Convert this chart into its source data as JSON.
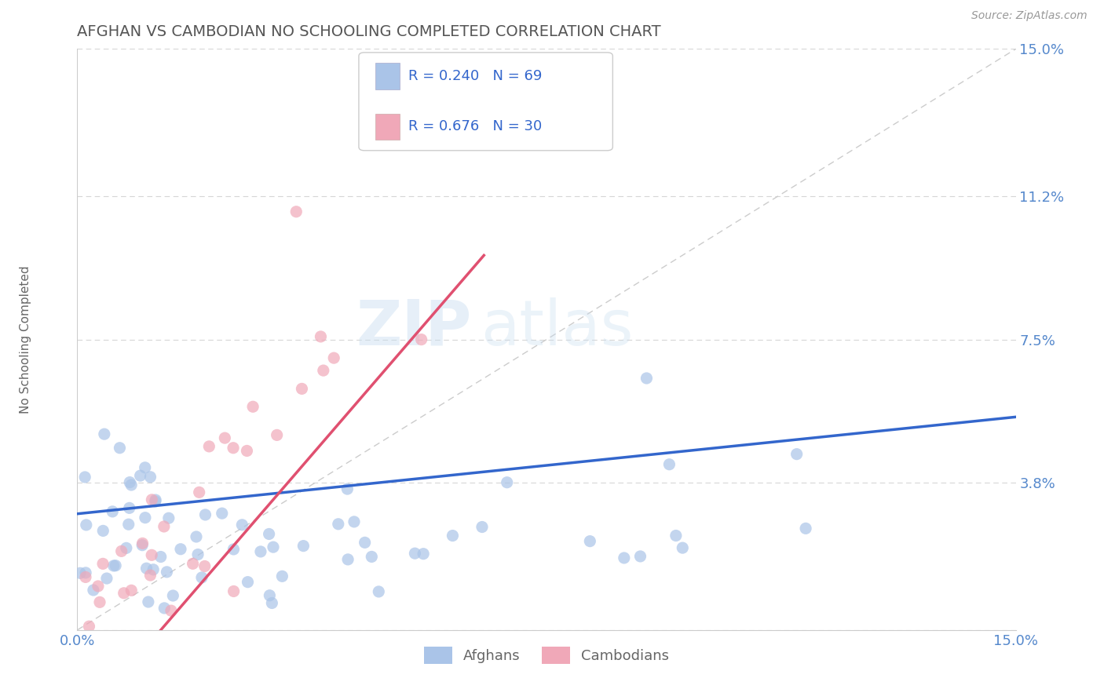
{
  "title": "AFGHAN VS CAMBODIAN NO SCHOOLING COMPLETED CORRELATION CHART",
  "source": "Source: ZipAtlas.com",
  "ylabel": "No Schooling Completed",
  "xlim": [
    0.0,
    0.15
  ],
  "ylim": [
    0.0,
    0.15
  ],
  "afghan_color": "#aac4e8",
  "afghan_line_color": "#3366cc",
  "cambodian_color": "#f0a8b8",
  "cambodian_line_color": "#e05070",
  "afghan_R": 0.24,
  "afghan_N": 69,
  "cambodian_R": 0.676,
  "cambodian_N": 30,
  "watermark_zip": "ZIP",
  "watermark_atlas": "atlas",
  "background_color": "#ffffff",
  "grid_color": "#cccccc",
  "title_color": "#555555",
  "axis_tick_color": "#5588cc",
  "diagonal_color": "#cccccc",
  "ytick_values": [
    0.0,
    0.038,
    0.075,
    0.112,
    0.15
  ],
  "ytick_labels": [
    "",
    "3.8%",
    "7.5%",
    "11.2%",
    "15.0%"
  ],
  "xtick_values": [
    0.0,
    0.15
  ],
  "xtick_labels": [
    "0.0%",
    "15.0%"
  ],
  "legend_box_color": "#e8eef8",
  "legend_text_color": "#3366cc"
}
